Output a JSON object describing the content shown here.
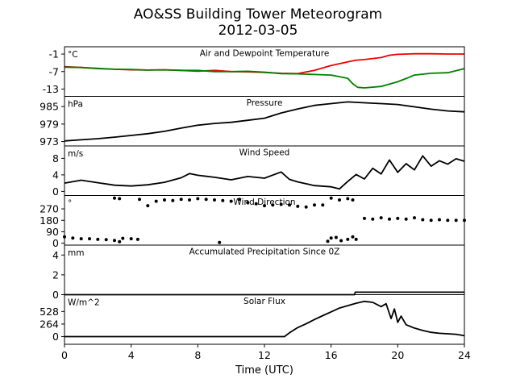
{
  "figure": {
    "title": "AO&SS Building Tower Meteorogram",
    "subtitle": "2012-03-05",
    "xlabel": "Time (UTC)",
    "xticks": [
      0,
      4,
      8,
      12,
      16,
      20,
      24
    ],
    "xlim": [
      0,
      24
    ]
  },
  "chart_data": [
    {
      "type": "line",
      "title": "Air and Dewpoint Temperature",
      "unit": "°C",
      "ylim": [
        -15.5,
        1.5
      ],
      "yticks": [
        -1,
        -7,
        -13
      ],
      "series": [
        {
          "color": "#ee0000",
          "x": [
            0,
            1,
            2,
            3,
            4,
            5,
            6,
            7,
            8,
            9,
            10,
            11,
            12,
            13,
            14,
            15,
            16,
            16.5,
            17,
            17.5,
            18,
            19,
            19.5,
            20,
            21,
            22,
            23,
            24
          ],
          "y": [
            -5.3,
            -5.6,
            -6.0,
            -6.2,
            -6.4,
            -6.5,
            -6.4,
            -6.6,
            -6.9,
            -6.6,
            -7.0,
            -7.1,
            -7.3,
            -7.6,
            -7.7,
            -6.6,
            -4.9,
            -4.3,
            -3.7,
            -3.1,
            -2.9,
            -2.2,
            -1.4,
            -1.1,
            -0.9,
            -0.9,
            -1.0,
            -1.0
          ]
        },
        {
          "color": "#008000",
          "x": [
            0,
            1,
            2,
            3,
            4,
            5,
            6,
            7,
            8,
            9,
            10,
            11,
            12,
            13,
            14,
            15,
            16,
            17,
            17.3,
            17.6,
            18,
            19,
            20,
            20.5,
            21,
            22,
            23,
            24
          ],
          "y": [
            -5.5,
            -5.6,
            -5.9,
            -6.2,
            -6.3,
            -6.5,
            -6.4,
            -6.6,
            -6.6,
            -7.0,
            -7.0,
            -6.9,
            -7.2,
            -7.7,
            -7.8,
            -8.0,
            -8.2,
            -9.3,
            -11.2,
            -12.4,
            -12.6,
            -12.1,
            -10.5,
            -9.4,
            -8.2,
            -7.6,
            -7.4,
            -6.0
          ]
        }
      ]
    },
    {
      "type": "line",
      "title": "Pressure",
      "unit": "hPa",
      "ylim": [
        971.5,
        988.5
      ],
      "yticks": [
        985,
        979,
        973
      ],
      "series": [
        {
          "color": "#000000",
          "x": [
            0,
            1,
            2,
            3,
            4,
            5,
            6,
            7,
            8,
            9,
            10,
            11,
            12,
            13,
            14,
            15,
            16,
            17,
            18,
            19,
            20,
            21,
            22,
            23,
            24
          ],
          "y": [
            973.2,
            973.6,
            974.0,
            974.5,
            975.1,
            975.7,
            976.5,
            977.6,
            978.6,
            979.2,
            979.6,
            980.3,
            981.0,
            982.8,
            984.2,
            985.4,
            986.0,
            986.6,
            986.3,
            986.0,
            985.7,
            984.9,
            984.1,
            983.5,
            983.2
          ]
        }
      ]
    },
    {
      "type": "line",
      "title": "Wind Speed",
      "unit": "m/s",
      "ylim": [
        -1,
        11
      ],
      "yticks": [
        8,
        4,
        0
      ],
      "series": [
        {
          "color": "#000000",
          "x": [
            0,
            1,
            2,
            3,
            4,
            5,
            6,
            7,
            7.5,
            8,
            9,
            10,
            11,
            12,
            13,
            13.5,
            14,
            15,
            16,
            16.5,
            17,
            17.5,
            18,
            18.5,
            19,
            19.5,
            20,
            20.5,
            21,
            21.5,
            22,
            22.5,
            23,
            23.5,
            24
          ],
          "y": [
            2.0,
            2.7,
            2.1,
            1.5,
            1.3,
            1.6,
            2.2,
            3.3,
            4.3,
            3.9,
            3.4,
            2.8,
            3.6,
            3.2,
            4.7,
            2.9,
            2.3,
            1.4,
            1.1,
            0.6,
            2.4,
            4.1,
            3.0,
            5.6,
            4.2,
            7.6,
            4.6,
            6.7,
            5.2,
            8.6,
            6.1,
            7.4,
            6.6,
            7.9,
            7.3
          ]
        }
      ]
    },
    {
      "type": "scatter",
      "title": "Wind Direction",
      "unit": "°",
      "ylim": [
        -15,
        375
      ],
      "yticks": [
        270,
        180,
        90,
        0
      ],
      "series": [
        {
          "color": "#000000",
          "x": [
            0,
            0.5,
            1,
            1.5,
            2,
            2.5,
            3,
            3.3,
            3.5,
            4,
            4.4,
            3,
            3.3,
            4.5,
            5,
            5.5,
            6,
            6.5,
            7,
            7.5,
            8,
            8.5,
            9,
            9.5,
            10,
            10.5,
            11,
            11.5,
            12,
            12.5,
            13,
            13.5,
            14,
            14.5,
            15,
            15.5,
            16,
            16.5,
            17,
            17.3,
            9.3,
            15.8,
            16,
            16.3,
            16.6,
            17,
            17.3,
            17.5,
            18,
            18.5,
            19,
            19.5,
            20,
            20.5,
            21,
            21.5,
            22,
            22.5,
            23,
            23.5,
            24
          ],
          "y": [
            50,
            40,
            35,
            35,
            30,
            28,
            22,
            12,
            38,
            35,
            30,
            355,
            350,
            345,
            295,
            330,
            340,
            335,
            345,
            340,
            350,
            345,
            340,
            335,
            330,
            345,
            320,
            310,
            295,
            300,
            305,
            300,
            290,
            285,
            300,
            300,
            355,
            340,
            350,
            340,
            5,
            15,
            40,
            45,
            20,
            30,
            50,
            30,
            195,
            190,
            200,
            190,
            195,
            190,
            200,
            185,
            180,
            185,
            180,
            180,
            180
          ]
        }
      ]
    },
    {
      "type": "area",
      "title": "Accumulated Precipitation Since 0Z",
      "unit": "mm",
      "ylim": [
        0,
        5
      ],
      "yticks": [
        4,
        2,
        0
      ],
      "series": [
        {
          "color": "#000000",
          "x": [
            0,
            17.4,
            17.45,
            24
          ],
          "y": [
            0,
            0,
            0.25,
            0.25
          ]
        }
      ]
    },
    {
      "type": "line",
      "title": "Solar Flux",
      "unit": "W/m^2",
      "ylim": [
        -160,
        880
      ],
      "yticks": [
        528,
        264,
        0
      ],
      "series": [
        {
          "color": "#000000",
          "x": [
            0,
            13.2,
            13.5,
            14,
            14.5,
            15,
            15.5,
            16,
            16.5,
            17,
            17.5,
            18,
            18.5,
            19,
            19.3,
            19.6,
            19.8,
            20,
            20.2,
            20.5,
            21,
            21.5,
            22,
            22.5,
            23,
            23.5,
            24
          ],
          "y": [
            0,
            0,
            80,
            190,
            270,
            360,
            440,
            520,
            600,
            650,
            700,
            740,
            720,
            630,
            690,
            380,
            580,
            300,
            430,
            250,
            180,
            130,
            90,
            70,
            60,
            50,
            20
          ]
        }
      ]
    }
  ]
}
